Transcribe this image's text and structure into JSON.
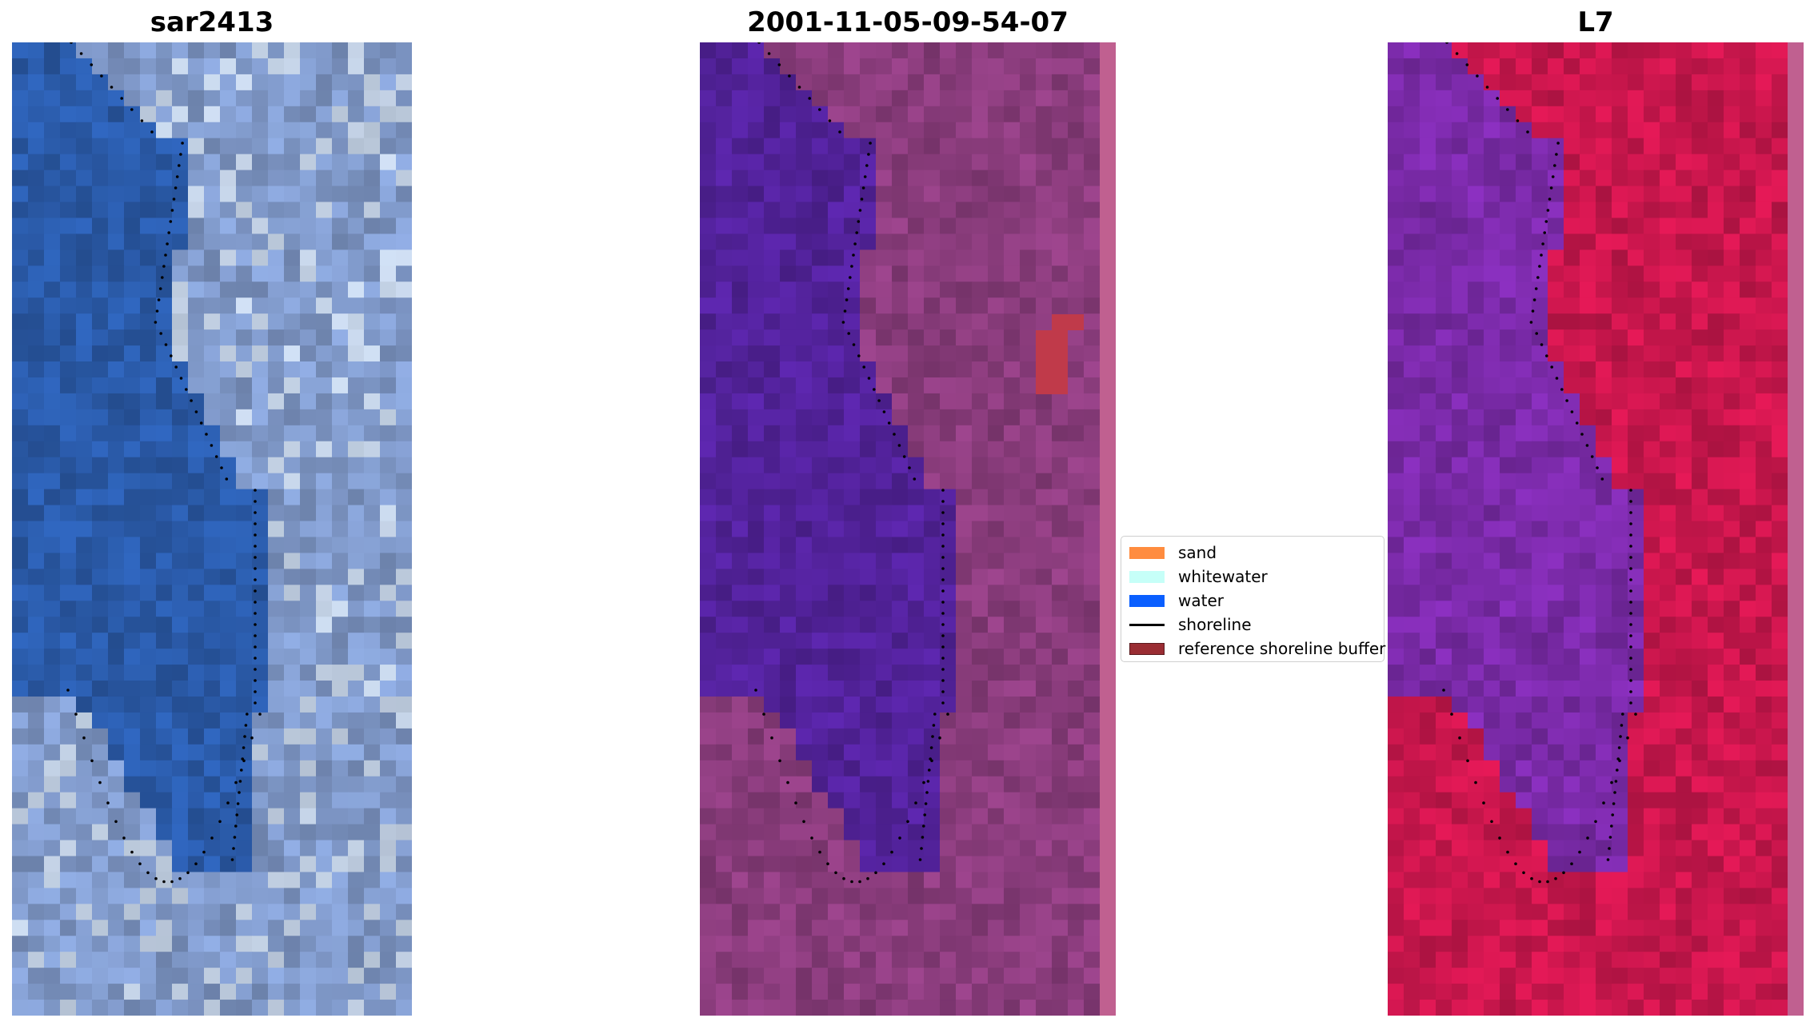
{
  "panels": [
    {
      "title": "sar2413",
      "image": "rgb-composite"
    },
    {
      "title": "2001-11-05-09-54-07",
      "image": "classified-overlay"
    },
    {
      "title": "L7",
      "image": "mndwi-index"
    }
  ],
  "legend": {
    "items": [
      {
        "label": "sand",
        "color": "#ff8c3f",
        "kind": "patch"
      },
      {
        "label": "whitewater",
        "color": "#c6fff8",
        "kind": "patch"
      },
      {
        "label": "water",
        "color": "#0a5fff",
        "kind": "patch"
      },
      {
        "label": "shoreline",
        "color": "#000000",
        "kind": "line"
      },
      {
        "label": "reference shoreline buffer",
        "color": "#9a2d33",
        "kind": "patch"
      }
    ]
  },
  "colors": {
    "panel1_water": "#2a5aa8",
    "panel1_land": "#7f98c8",
    "panel2_water": "#52229a",
    "panel2_land": "#8a3c7c",
    "panel3_water": "#7a2aa8",
    "panel3_land": "#c8164c"
  }
}
